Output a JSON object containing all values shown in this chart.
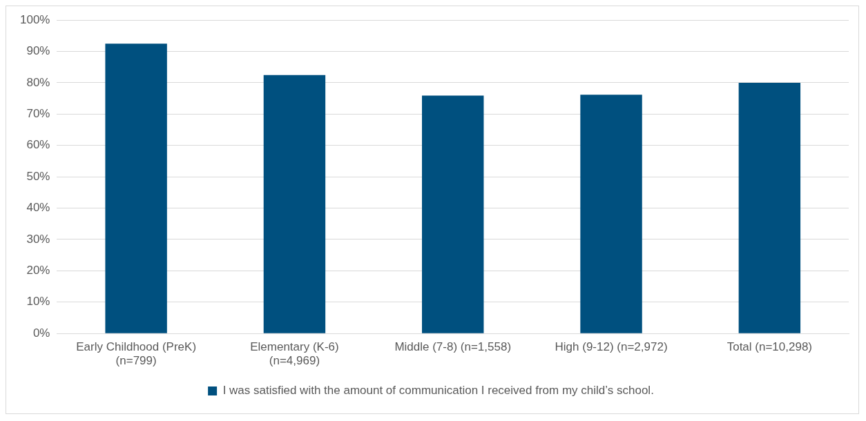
{
  "chart_data": {
    "type": "bar",
    "categories": [
      "Early Childhood (PreK) (n=799)",
      "Elementary (K-6) (n=4,969)",
      "Middle (7-8) (n=1,558)",
      "High (9-12) (n=2,972)",
      "Total (n=10,298)"
    ],
    "series": [
      {
        "name": "I was satisfied with the amount of communication I received from my child’s school.",
        "color": "#00507f",
        "values": [
          92.5,
          82.5,
          75.9,
          76.2,
          80.0
        ]
      }
    ],
    "ylim": [
      0,
      100
    ],
    "yticks": [
      {
        "value": 0,
        "label": "0%"
      },
      {
        "value": 10,
        "label": "10%"
      },
      {
        "value": 20,
        "label": "20%"
      },
      {
        "value": 30,
        "label": "30%"
      },
      {
        "value": 40,
        "label": "40%"
      },
      {
        "value": 50,
        "label": "50%"
      },
      {
        "value": 60,
        "label": "60%"
      },
      {
        "value": 70,
        "label": "70%"
      },
      {
        "value": 80,
        "label": "80%"
      },
      {
        "value": 90,
        "label": "90%"
      },
      {
        "value": 100,
        "label": "100%"
      }
    ],
    "grid": "y",
    "legend": "bottom"
  }
}
